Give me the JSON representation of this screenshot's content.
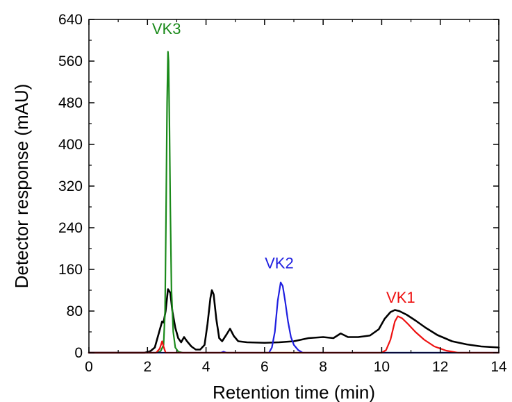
{
  "chart_data": {
    "type": "line",
    "xlabel": "Retention time (min)",
    "ylabel": "Detector response (mAU)",
    "xlim": [
      0,
      14
    ],
    "ylim": [
      0,
      640
    ],
    "x_ticks": [
      "0",
      "2",
      "4",
      "6",
      "8",
      "10",
      "12",
      "14"
    ],
    "y_ticks": [
      "0",
      "80",
      "160",
      "240",
      "320",
      "400",
      "480",
      "560",
      "640"
    ],
    "grid": false,
    "annotations": [
      {
        "text": "VK3",
        "x": 2.65,
        "y": 612,
        "color": "#1a8a1a"
      },
      {
        "text": "VK2",
        "x": 6.5,
        "y": 162,
        "color": "#1f1fe0"
      },
      {
        "text": "VK1",
        "x": 10.65,
        "y": 96,
        "color": "#ee1111"
      }
    ],
    "series": [
      {
        "name": "",
        "color": "#000000",
        "points": [
          [
            0,
            0
          ],
          [
            1.9,
            0
          ],
          [
            2.1,
            3
          ],
          [
            2.25,
            10
          ],
          [
            2.4,
            40
          ],
          [
            2.5,
            60
          ],
          [
            2.55,
            58
          ],
          [
            2.62,
            80
          ],
          [
            2.7,
            122
          ],
          [
            2.78,
            115
          ],
          [
            2.85,
            80
          ],
          [
            2.95,
            48
          ],
          [
            3.05,
            28
          ],
          [
            3.15,
            20
          ],
          [
            3.25,
            30
          ],
          [
            3.35,
            22
          ],
          [
            3.5,
            12
          ],
          [
            3.65,
            6
          ],
          [
            3.8,
            6
          ],
          [
            3.95,
            15
          ],
          [
            4.05,
            55
          ],
          [
            4.15,
            105
          ],
          [
            4.2,
            120
          ],
          [
            4.26,
            112
          ],
          [
            4.35,
            65
          ],
          [
            4.45,
            28
          ],
          [
            4.55,
            22
          ],
          [
            4.7,
            35
          ],
          [
            4.82,
            46
          ],
          [
            4.95,
            32
          ],
          [
            5.1,
            22
          ],
          [
            5.4,
            20
          ],
          [
            6.0,
            19
          ],
          [
            6.5,
            20
          ],
          [
            7.0,
            22
          ],
          [
            7.5,
            28
          ],
          [
            8.0,
            30
          ],
          [
            8.35,
            28
          ],
          [
            8.6,
            37
          ],
          [
            8.85,
            30
          ],
          [
            9.2,
            30
          ],
          [
            9.6,
            33
          ],
          [
            9.9,
            45
          ],
          [
            10.1,
            65
          ],
          [
            10.3,
            78
          ],
          [
            10.45,
            82
          ],
          [
            10.6,
            80
          ],
          [
            10.85,
            73
          ],
          [
            11.15,
            62
          ],
          [
            11.5,
            48
          ],
          [
            11.9,
            34
          ],
          [
            12.4,
            22
          ],
          [
            12.9,
            16
          ],
          [
            13.4,
            12
          ],
          [
            14.0,
            10
          ]
        ]
      },
      {
        "name": "",
        "color": "#1a8a1a",
        "points": [
          [
            0,
            0
          ],
          [
            2.3,
            0
          ],
          [
            2.45,
            3
          ],
          [
            2.55,
            15
          ],
          [
            2.6,
            80
          ],
          [
            2.64,
            300
          ],
          [
            2.67,
            480
          ],
          [
            2.7,
            578
          ],
          [
            2.72,
            560
          ],
          [
            2.75,
            440
          ],
          [
            2.78,
            280
          ],
          [
            2.82,
            120
          ],
          [
            2.88,
            40
          ],
          [
            2.95,
            10
          ],
          [
            3.05,
            2
          ],
          [
            3.2,
            0
          ],
          [
            14,
            0
          ]
        ]
      },
      {
        "name": "",
        "color": "#1f1fe0",
        "points": [
          [
            0,
            0
          ],
          [
            4.5,
            0
          ],
          [
            4.6,
            2
          ],
          [
            4.7,
            0
          ],
          [
            6.15,
            0
          ],
          [
            6.25,
            10
          ],
          [
            6.35,
            40
          ],
          [
            6.45,
            100
          ],
          [
            6.55,
            135
          ],
          [
            6.62,
            128
          ],
          [
            6.7,
            100
          ],
          [
            6.8,
            60
          ],
          [
            6.9,
            30
          ],
          [
            7.0,
            15
          ],
          [
            7.15,
            5
          ],
          [
            7.3,
            0
          ],
          [
            14,
            0
          ]
        ]
      },
      {
        "name": "",
        "color": "#ee1111",
        "points": [
          [
            0,
            0
          ],
          [
            2.3,
            0
          ],
          [
            2.42,
            8
          ],
          [
            2.5,
            22
          ],
          [
            2.56,
            10
          ],
          [
            2.62,
            0
          ],
          [
            10.0,
            0
          ],
          [
            10.15,
            5
          ],
          [
            10.3,
            25
          ],
          [
            10.45,
            60
          ],
          [
            10.55,
            70
          ],
          [
            10.7,
            66
          ],
          [
            10.9,
            55
          ],
          [
            11.15,
            40
          ],
          [
            11.45,
            25
          ],
          [
            11.8,
            12
          ],
          [
            12.2,
            4
          ],
          [
            12.6,
            0
          ],
          [
            14,
            0
          ]
        ]
      }
    ]
  }
}
